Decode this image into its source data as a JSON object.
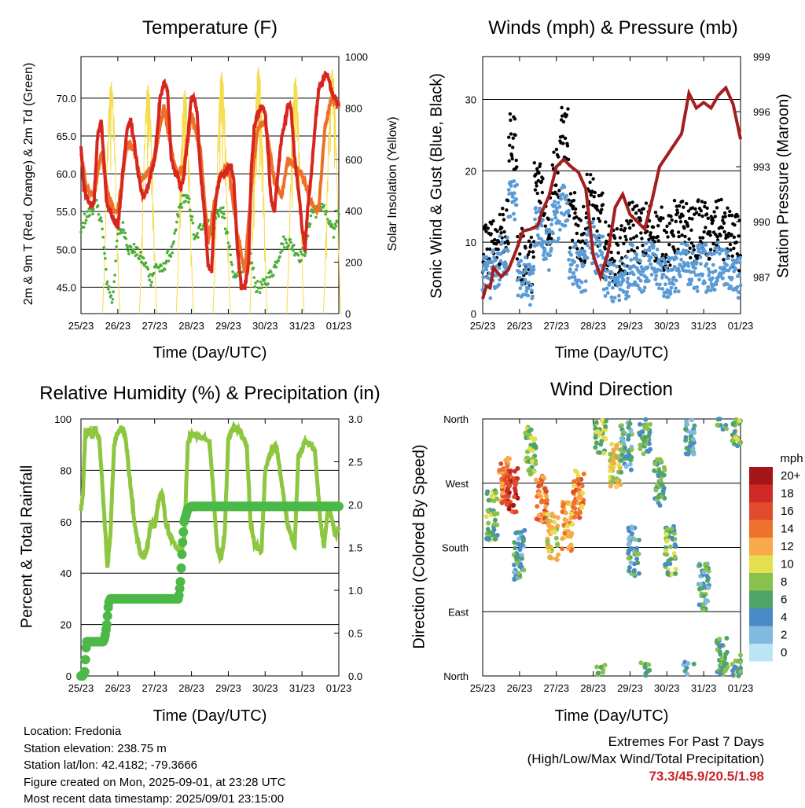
{
  "chart_data": [
    {
      "type": "line",
      "title": "Temperature (F)",
      "xlabel": "Time (Day/UTC)",
      "ylabel": "2m & 9m T (Red, Orange) & 2m Td (Green)",
      "y2label": "Solar Insolation (Yellow)",
      "x_ticks": [
        "25/23",
        "26/23",
        "27/23",
        "28/23",
        "29/23",
        "30/23",
        "31/23",
        "01/23"
      ],
      "y_ticks": [
        "45.0",
        "50.0",
        "55.0",
        "60.0",
        "65.0",
        "70.0"
      ],
      "y2_ticks": [
        "0",
        "200",
        "400",
        "600",
        "800",
        "1000"
      ],
      "ylim": [
        41.5,
        75.5
      ],
      "y2lim": [
        0,
        1000
      ],
      "series": [
        {
          "name": "2m T",
          "color": "#d7261e",
          "x": [
            0,
            0.08,
            0.15,
            0.25,
            0.35,
            0.45,
            0.55,
            0.62,
            0.7,
            0.8,
            0.9,
            1.0,
            1.08,
            1.15,
            1.25,
            1.35,
            1.45,
            1.55,
            1.62,
            1.7,
            1.8,
            1.9,
            2.0,
            2.08,
            2.15,
            2.25,
            2.35,
            2.45,
            2.55,
            2.62,
            2.7,
            2.8,
            2.9,
            3.0,
            3.08,
            3.15,
            3.25,
            3.35,
            3.45,
            3.55,
            3.62,
            3.7,
            3.8,
            3.9,
            4.0,
            4.08,
            4.15,
            4.25,
            4.35,
            4.45,
            4.55,
            4.62,
            4.7,
            4.8,
            4.9,
            5.0,
            5.08,
            5.15,
            5.25,
            5.35,
            5.45,
            5.55,
            5.62,
            5.7,
            5.8,
            5.9,
            6.0,
            6.08,
            6.15,
            6.25,
            6.35,
            6.45,
            6.55,
            6.62,
            6.7,
            6.8,
            6.9,
            7.0
          ],
          "values": [
            64,
            58,
            57,
            56,
            56,
            65,
            67,
            62,
            56,
            55,
            54,
            53,
            57,
            61,
            66,
            67,
            64,
            60,
            58,
            57,
            58,
            60,
            62,
            66,
            70,
            72,
            71,
            62,
            60,
            60,
            58,
            60,
            65,
            70,
            70,
            68,
            60,
            55,
            48,
            47,
            55,
            58,
            60,
            60,
            61,
            61,
            59,
            50,
            45,
            45,
            48,
            60,
            66,
            68,
            69,
            68,
            63,
            57,
            55,
            60,
            65,
            67,
            69,
            69,
            62,
            58,
            53,
            50,
            55,
            60,
            66,
            71,
            72,
            73,
            73,
            71,
            70,
            69
          ]
        },
        {
          "name": "9m T",
          "color": "#ee7028",
          "x": [
            0,
            0.15,
            0.35,
            0.55,
            0.7,
            0.9,
            1.0,
            1.25,
            1.45,
            1.62,
            1.8,
            2.0,
            2.25,
            2.45,
            2.62,
            2.8,
            3.0,
            3.25,
            3.45,
            3.62,
            3.8,
            4.0,
            4.25,
            4.45,
            4.62,
            4.8,
            5.0,
            5.25,
            5.45,
            5.62,
            5.8,
            6.0,
            6.25,
            6.45,
            6.62,
            6.8,
            7.0
          ],
          "values": [
            63,
            58,
            57,
            63,
            58,
            55,
            55,
            64,
            63,
            59,
            60,
            62,
            69,
            63,
            60,
            61,
            68,
            63,
            51,
            56,
            60,
            61,
            52,
            47,
            58,
            66,
            67,
            59,
            57,
            62,
            61,
            60,
            56,
            55,
            66,
            70,
            69
          ]
        },
        {
          "name": "2m Td",
          "color": "#4caf3a",
          "x": [
            0,
            0.1,
            0.25,
            0.4,
            0.55,
            0.7,
            0.85,
            1.0,
            1.15,
            1.3,
            1.45,
            1.6,
            1.75,
            1.9,
            2.05,
            2.2,
            2.35,
            2.5,
            2.65,
            2.8,
            2.95,
            3.1,
            3.25,
            3.4,
            3.55,
            3.7,
            3.85,
            4.0,
            4.15,
            4.3,
            4.45,
            4.6,
            4.75,
            4.9,
            5.05,
            5.2,
            5.35,
            5.5,
            5.65,
            5.8,
            5.95,
            6.1,
            6.25,
            6.4,
            6.55,
            6.7,
            6.85,
            7.0
          ],
          "values": [
            52,
            54,
            55,
            56,
            54,
            46,
            43,
            52,
            53,
            50,
            50,
            49,
            48,
            46,
            48,
            47,
            49,
            50,
            55,
            57,
            56,
            51,
            53,
            54,
            52,
            55,
            55,
            51,
            46,
            48,
            47,
            49,
            45,
            45,
            46,
            47,
            49,
            51,
            51,
            50,
            49,
            50,
            55,
            55,
            56,
            54,
            52,
            55
          ]
        },
        {
          "name": "Solar Insolation",
          "color": "#f5dc4a",
          "axis": "y2",
          "peaks": [
            900,
            890,
            870,
            940,
            960,
            920,
            950,
            930
          ]
        }
      ]
    },
    {
      "type": "scatter",
      "title": "Winds (mph) & Pressure (mb)",
      "xlabel": "Time (Day/UTC)",
      "ylabel": "Sonic Wind & Gust (Blue, Black)",
      "y2label": "Station Pressure (Maroon)",
      "x_ticks": [
        "25/23",
        "26/23",
        "27/23",
        "28/23",
        "29/23",
        "30/23",
        "31/23",
        "01/23"
      ],
      "y_ticks": [
        "0",
        "10",
        "20",
        "30"
      ],
      "y2_ticks": [
        "987",
        "990",
        "993",
        "996",
        "999"
      ],
      "ylim": [
        0,
        36
      ],
      "y2lim": [
        985,
        999
      ],
      "series": [
        {
          "name": "Gust",
          "color": "#000000",
          "base": [
            9,
            10,
            12,
            24,
            8,
            7,
            18,
            13,
            20,
            25,
            13,
            11,
            16,
            13,
            9,
            8,
            9,
            12,
            11,
            12,
            11,
            10,
            12,
            12,
            11,
            12,
            11,
            12,
            11,
            10
          ]
        },
        {
          "name": "Wind",
          "color": "#5b9bd5",
          "base": [
            5,
            6,
            8,
            16,
            5,
            4,
            12,
            9,
            13,
            15,
            7,
            6,
            10,
            8,
            5,
            4,
            5,
            7,
            6,
            7,
            6,
            5,
            6,
            7,
            6,
            7,
            6,
            7,
            6,
            5
          ]
        },
        {
          "name": "Pressure",
          "color": "#a31f1f",
          "axis": "y2",
          "x": [
            0,
            0.1,
            0.2,
            0.3,
            0.5,
            0.7,
            0.9,
            1.1,
            1.3,
            1.5,
            1.6,
            1.8,
            2.0,
            2.2,
            2.4,
            2.6,
            2.8,
            3.0,
            3.2,
            3.4,
            3.6,
            3.8,
            4.0,
            4.2,
            4.4,
            4.6,
            4.8,
            5.0,
            5.2,
            5.4,
            5.6,
            5.8,
            6.0,
            6.2,
            6.4,
            6.6,
            6.8,
            7.0
          ],
          "values": [
            985.8,
            986.5,
            986.4,
            987.5,
            987,
            987.4,
            988.4,
            989.5,
            989.6,
            989.8,
            990.5,
            991.4,
            993,
            993.4,
            993,
            992.7,
            991.8,
            988.2,
            987,
            988.3,
            990.8,
            991.5,
            990.4,
            990,
            989.6,
            991.2,
            993,
            993.6,
            994.2,
            994.8,
            997,
            996.2,
            996.5,
            996.2,
            996.9,
            997.3,
            996.4,
            994.5
          ]
        }
      ]
    },
    {
      "type": "line",
      "title": "Relative Humidity (%) & Precipitation (in)",
      "xlabel": "Time (Day/UTC)",
      "ylabel": "Percent & Total Rainfall",
      "x_ticks": [
        "25/23",
        "26/23",
        "27/23",
        "28/23",
        "29/23",
        "30/23",
        "31/23",
        "01/23"
      ],
      "y_ticks": [
        "0",
        "20",
        "40",
        "60",
        "80",
        "100"
      ],
      "y2_ticks": [
        "0.0",
        "0.5",
        "1.0",
        "1.5",
        "2.0",
        "2.5",
        "3.0"
      ],
      "ylim": [
        0,
        100
      ],
      "y2lim": [
        0,
        3.0
      ],
      "series": [
        {
          "name": "Relative Humidity",
          "color": "#8dc63f",
          "x": [
            0,
            0.05,
            0.12,
            0.22,
            0.3,
            0.38,
            0.5,
            0.6,
            0.72,
            0.8,
            0.9,
            1.0,
            1.1,
            1.2,
            1.3,
            1.45,
            1.6,
            1.7,
            1.8,
            1.9,
            2.0,
            2.1,
            2.2,
            2.3,
            2.4,
            2.5,
            2.6,
            2.7,
            2.8,
            2.9,
            3.0,
            3.1,
            3.2,
            3.35,
            3.5,
            3.6,
            3.7,
            3.8,
            3.9,
            4.0,
            4.1,
            4.2,
            4.35,
            4.5,
            4.6,
            4.7,
            4.8,
            4.9,
            5.0,
            5.1,
            5.2,
            5.3,
            5.45,
            5.6,
            5.7,
            5.8,
            5.9,
            6.0,
            6.1,
            6.2,
            6.35,
            6.5,
            6.6,
            6.7,
            6.8,
            6.9,
            7.0
          ],
          "values": [
            65,
            70,
            95,
            96,
            93,
            97,
            92,
            70,
            42,
            55,
            90,
            95,
            96,
            94,
            80,
            60,
            48,
            46,
            50,
            60,
            58,
            68,
            72,
            60,
            55,
            52,
            50,
            48,
            52,
            90,
            95,
            94,
            92,
            93,
            90,
            70,
            50,
            45,
            55,
            92,
            96,
            97,
            94,
            90,
            60,
            52,
            50,
            48,
            80,
            85,
            88,
            90,
            75,
            60,
            55,
            50,
            85,
            88,
            92,
            90,
            88,
            60,
            50,
            65,
            62,
            55,
            58
          ]
        },
        {
          "name": "Total Precipitation",
          "color": "#4cb848",
          "axis": "y2",
          "x": [
            0,
            0.05,
            0.1,
            0.15,
            0.2,
            0.25,
            0.3,
            0.35,
            0.4,
            0.45,
            0.5,
            0.55,
            0.6,
            0.65,
            0.7,
            0.75,
            0.8,
            0.85,
            0.9,
            0.95,
            1.0,
            1.5,
            2.0,
            2.4,
            2.55,
            2.65,
            2.7,
            2.75,
            2.8,
            2.9,
            3.0,
            3.5,
            4.0,
            4.5,
            5.0,
            5.5,
            6.0,
            6.5,
            7.0
          ],
          "values": [
            0,
            0,
            0.05,
            0.4,
            0.4,
            0.4,
            0.4,
            0.4,
            0.4,
            0.4,
            0.4,
            0.4,
            0.4,
            0.45,
            0.6,
            0.85,
            0.9,
            0.9,
            0.9,
            0.9,
            0.9,
            0.9,
            0.9,
            0.9,
            0.9,
            0.9,
            1.1,
            1.5,
            1.8,
            1.95,
            1.98,
            1.98,
            1.98,
            1.98,
            1.98,
            1.98,
            1.98,
            1.98,
            1.98
          ]
        }
      ]
    },
    {
      "type": "scatter",
      "title": "Wind Direction",
      "xlabel": "Time (Day/UTC)",
      "ylabel": "Direction (Colored By Speed)",
      "x_ticks": [
        "25/23",
        "26/23",
        "27/23",
        "28/23",
        "29/23",
        "30/23",
        "31/23",
        "01/23"
      ],
      "y_ticks": [
        "North",
        "East",
        "South",
        "West",
        "North"
      ],
      "ylim": [
        0,
        360
      ],
      "legend_title": "mph",
      "legend_labels": [
        "20+",
        "18",
        "16",
        "14",
        "12",
        "10",
        "8",
        "6",
        "4",
        "2",
        "0"
      ],
      "legend_colors": [
        "#a4161a",
        "#cf2a26",
        "#e04b2b",
        "#f0712c",
        "#f8a94a",
        "#e4df4e",
        "#88c24c",
        "#4fa46a",
        "#4a8ac6",
        "#82badf",
        "#bde4f5"
      ],
      "clusters": [
        {
          "x": 0.25,
          "dir": 225,
          "spd": 7
        },
        {
          "x": 0.6,
          "dir": 275,
          "spd": 14
        },
        {
          "x": 0.8,
          "dir": 260,
          "spd": 17
        },
        {
          "x": 1.0,
          "dir": 170,
          "spd": 5
        },
        {
          "x": 1.3,
          "dir": 315,
          "spd": 8
        },
        {
          "x": 1.6,
          "dir": 250,
          "spd": 14
        },
        {
          "x": 1.9,
          "dir": 195,
          "spd": 10
        },
        {
          "x": 2.3,
          "dir": 210,
          "spd": 12
        },
        {
          "x": 2.6,
          "dir": 255,
          "spd": 13
        },
        {
          "x": 3.2,
          "dir": 345,
          "spd": 8
        },
        {
          "x": 3.6,
          "dir": 295,
          "spd": 10
        },
        {
          "x": 3.9,
          "dir": 320,
          "spd": 5
        },
        {
          "x": 4.1,
          "dir": 175,
          "spd": 5
        },
        {
          "x": 4.4,
          "dir": 345,
          "spd": 6
        },
        {
          "x": 4.8,
          "dir": 270,
          "spd": 6
        },
        {
          "x": 5.1,
          "dir": 175,
          "spd": 7
        },
        {
          "x": 5.6,
          "dir": 345,
          "spd": 4
        },
        {
          "x": 6.0,
          "dir": 125,
          "spd": 5
        },
        {
          "x": 6.5,
          "dir": 20,
          "spd": 6
        },
        {
          "x": 6.9,
          "dir": 355,
          "spd": 7
        }
      ]
    }
  ],
  "info": {
    "location": "Location: Fredonia",
    "elevation": "Station elevation: 238.75 m",
    "latlon": "Station lat/lon: 42.4182; -79.3666",
    "created": "Figure created on Mon, 2025-09-01, at 23:28 UTC",
    "recent": "Most recent data timestamp: 2025/09/01 23:15:00"
  },
  "extremes": {
    "line1": "Extremes For Past 7 Days",
    "line2": "(High/Low/Max Wind/Total Precipitation)",
    "values": "73.3/45.9/20.5/1.98"
  }
}
